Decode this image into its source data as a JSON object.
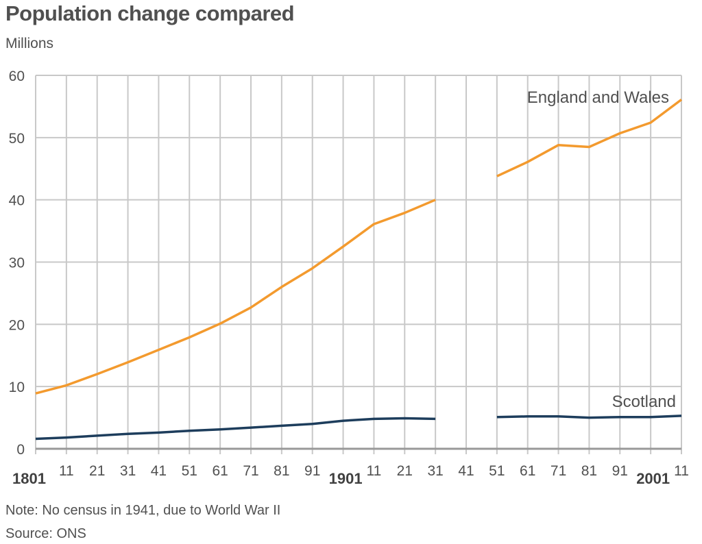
{
  "chart_data": {
    "type": "line",
    "title": "Population change compared",
    "ylabel": "Millions",
    "ylim": [
      0,
      60
    ],
    "yticks": [
      0,
      10,
      20,
      30,
      40,
      50,
      60
    ],
    "xlim": [
      1801,
      2011
    ],
    "x": [
      1801,
      1811,
      1821,
      1831,
      1841,
      1851,
      1861,
      1871,
      1881,
      1891,
      1901,
      1911,
      1921,
      1931,
      1941,
      1951,
      1961,
      1971,
      1981,
      1991,
      2001,
      2011
    ],
    "xtick_labels": [
      "1801",
      "11",
      "21",
      "31",
      "41",
      "51",
      "61",
      "71",
      "81",
      "91",
      "1901",
      "11",
      "21",
      "31",
      "41",
      "51",
      "61",
      "71",
      "81",
      "91",
      "2001",
      "11"
    ],
    "grid": true,
    "series": [
      {
        "name": "England and Wales",
        "color": "#f39a2e",
        "values": [
          8.9,
          10.2,
          12.0,
          13.9,
          15.9,
          17.9,
          20.1,
          22.7,
          26.0,
          29.0,
          32.5,
          36.1,
          37.9,
          40.0,
          null,
          43.8,
          46.1,
          48.8,
          48.5,
          50.7,
          52.4,
          56.1
        ]
      },
      {
        "name": "Scotland",
        "color": "#1d3d5c",
        "values": [
          1.6,
          1.8,
          2.1,
          2.4,
          2.6,
          2.9,
          3.1,
          3.4,
          3.7,
          4.0,
          4.5,
          4.8,
          4.9,
          4.8,
          null,
          5.1,
          5.2,
          5.2,
          5.0,
          5.1,
          5.1,
          5.3
        ]
      }
    ],
    "note": "Note:  No census in 1941, due to World War II",
    "source": "Source: ONS"
  }
}
